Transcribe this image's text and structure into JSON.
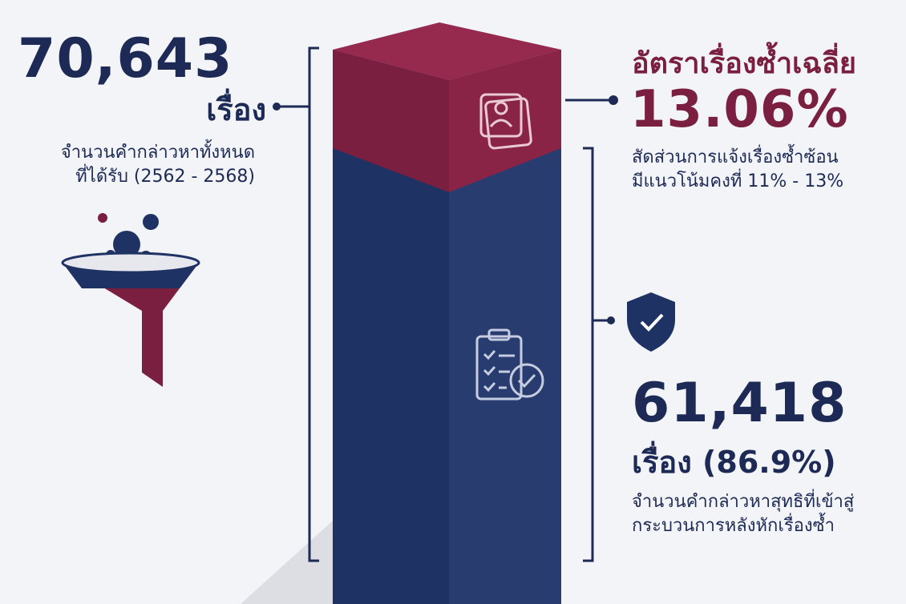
{
  "left": {
    "value": "70,643",
    "unit": "เรื่อง",
    "description": [
      "จำนวนคำกล่าวหาทั้งหนด",
      "ที่ได้รับ (2562 - 2568)"
    ]
  },
  "top_right": {
    "title": "อัตราเรื่องซ้ำเฉลี่ย",
    "value": "13.06%",
    "description": [
      "สัดส่วนการแจ้งเรื่องซ้ำซ้อน",
      "มีแนวโน้มคงที่ 11% - 13%"
    ]
  },
  "bottom_right": {
    "value": "61,418",
    "unit": "เรื่อง (86.9%)",
    "description": [
      "จำนวนคำกล่าวหาสุทธิที่เข้าสู่",
      "กระบวนการหลังหักเรื่องซ้ำ"
    ]
  }
}
